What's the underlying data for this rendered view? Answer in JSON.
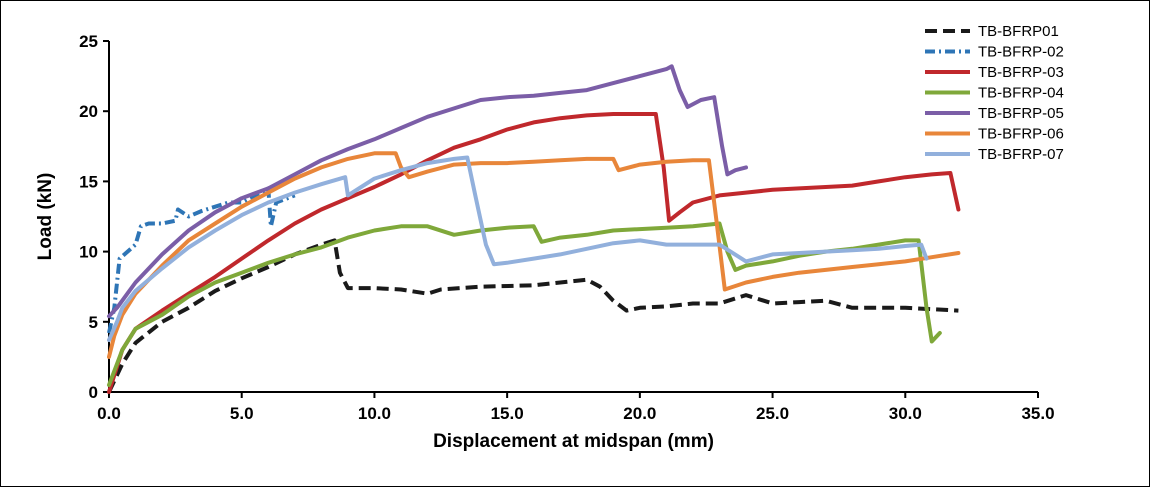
{
  "chart_data": {
    "type": "line",
    "title": "",
    "xlabel": "Displacement at midspan (mm)",
    "ylabel": "Load (kN)",
    "xlim": [
      0,
      35
    ],
    "ylim": [
      0,
      25
    ],
    "x_ticks": [
      0,
      5,
      10,
      15,
      20,
      25,
      30,
      35
    ],
    "x_tick_labels": [
      "0.0",
      "5.0",
      "10.0",
      "15.0",
      "20.0",
      "25.0",
      "30.0",
      "35.0"
    ],
    "y_ticks": [
      0,
      5,
      10,
      15,
      20,
      25
    ],
    "y_tick_labels": [
      "0",
      "5",
      "10",
      "15",
      "20",
      "25"
    ],
    "grid": false,
    "legend_position": "top-right",
    "series": [
      {
        "name": "TB-BFRP01",
        "color": "#1a1a1a",
        "dash": "dashed",
        "points": [
          [
            0,
            0
          ],
          [
            0.5,
            2
          ],
          [
            1,
            3.5
          ],
          [
            2,
            5
          ],
          [
            3,
            6
          ],
          [
            4,
            7.2
          ],
          [
            5,
            8.1
          ],
          [
            6,
            8.9
          ],
          [
            7,
            9.8
          ],
          [
            8,
            10.5
          ],
          [
            8.5,
            10.8
          ],
          [
            8.7,
            8.5
          ],
          [
            9,
            7.4
          ],
          [
            10,
            7.4
          ],
          [
            11,
            7.3
          ],
          [
            12,
            7.0
          ],
          [
            12.5,
            7.3
          ],
          [
            14,
            7.5
          ],
          [
            16,
            7.6
          ],
          [
            18,
            8.0
          ],
          [
            18.5,
            7.5
          ],
          [
            19,
            6.5
          ],
          [
            19.5,
            5.8
          ],
          [
            20,
            6.0
          ],
          [
            21,
            6.1
          ],
          [
            22,
            6.3
          ],
          [
            23,
            6.3
          ],
          [
            24,
            6.9
          ],
          [
            25,
            6.3
          ],
          [
            26,
            6.4
          ],
          [
            27,
            6.5
          ],
          [
            28,
            6.0
          ],
          [
            29,
            6.0
          ],
          [
            30,
            6.0
          ],
          [
            31,
            5.9
          ],
          [
            32,
            5.8
          ]
        ]
      },
      {
        "name": "TB-BFRP-02",
        "color": "#2e75b6",
        "dash": "dashdot",
        "points": [
          [
            0,
            4.2
          ],
          [
            0.2,
            6
          ],
          [
            0.4,
            9.5
          ],
          [
            0.7,
            10
          ],
          [
            1,
            10.5
          ],
          [
            1.2,
            11.8
          ],
          [
            1.5,
            12
          ],
          [
            2,
            12
          ],
          [
            2.5,
            12.2
          ],
          [
            2.6,
            13
          ],
          [
            3,
            12.5
          ],
          [
            3.5,
            12.9
          ],
          [
            4,
            13.2
          ],
          [
            4.5,
            13.5
          ],
          [
            5,
            13.5
          ],
          [
            5.5,
            14
          ],
          [
            6,
            14.5
          ],
          [
            6.1,
            11.8
          ],
          [
            6.3,
            13.5
          ],
          [
            7,
            14
          ]
        ]
      },
      {
        "name": "TB-BFRP-03",
        "color": "#c0282c",
        "dash": "solid",
        "points": [
          [
            0,
            0
          ],
          [
            0.5,
            3
          ],
          [
            1,
            4.5
          ],
          [
            2,
            5.8
          ],
          [
            3,
            7
          ],
          [
            4,
            8.2
          ],
          [
            5,
            9.5
          ],
          [
            6,
            10.8
          ],
          [
            7,
            12
          ],
          [
            8,
            13
          ],
          [
            9,
            13.8
          ],
          [
            10,
            14.6
          ],
          [
            11,
            15.5
          ],
          [
            12,
            16.5
          ],
          [
            13,
            17.4
          ],
          [
            14,
            18.0
          ],
          [
            15,
            18.7
          ],
          [
            16,
            19.2
          ],
          [
            17,
            19.5
          ],
          [
            18,
            19.7
          ],
          [
            19,
            19.8
          ],
          [
            20,
            19.8
          ],
          [
            20.6,
            19.8
          ],
          [
            20.9,
            16
          ],
          [
            21.1,
            12.2
          ],
          [
            21.5,
            12.8
          ],
          [
            22,
            13.5
          ],
          [
            23,
            14
          ],
          [
            24,
            14.2
          ],
          [
            25,
            14.4
          ],
          [
            26,
            14.5
          ],
          [
            27,
            14.6
          ],
          [
            28,
            14.7
          ],
          [
            29,
            15.0
          ],
          [
            30,
            15.3
          ],
          [
            31,
            15.5
          ],
          [
            31.7,
            15.6
          ],
          [
            32,
            13
          ]
        ]
      },
      {
        "name": "TB-BFRP-04",
        "color": "#7fa83a",
        "dash": "solid",
        "points": [
          [
            0,
            0.5
          ],
          [
            0.3,
            2
          ],
          [
            0.5,
            3
          ],
          [
            1,
            4.5
          ],
          [
            2,
            5.5
          ],
          [
            3,
            6.8
          ],
          [
            4,
            7.8
          ],
          [
            5,
            8.5
          ],
          [
            6,
            9.2
          ],
          [
            7,
            9.8
          ],
          [
            8,
            10.3
          ],
          [
            9,
            11
          ],
          [
            10,
            11.5
          ],
          [
            11,
            11.8
          ],
          [
            12,
            11.8
          ],
          [
            13,
            11.2
          ],
          [
            14,
            11.5
          ],
          [
            15,
            11.7
          ],
          [
            16,
            11.8
          ],
          [
            16.3,
            10.7
          ],
          [
            17,
            11
          ],
          [
            18,
            11.2
          ],
          [
            19,
            11.5
          ],
          [
            20,
            11.6
          ],
          [
            21,
            11.7
          ],
          [
            22,
            11.8
          ],
          [
            23,
            12.0
          ],
          [
            23.3,
            10
          ],
          [
            23.6,
            8.7
          ],
          [
            24,
            9
          ],
          [
            25,
            9.3
          ],
          [
            26,
            9.7
          ],
          [
            27,
            10
          ],
          [
            28,
            10.2
          ],
          [
            29,
            10.5
          ],
          [
            30,
            10.8
          ],
          [
            30.5,
            10.8
          ],
          [
            30.8,
            6
          ],
          [
            31,
            3.6
          ],
          [
            31.3,
            4.2
          ]
        ]
      },
      {
        "name": "TB-BFRP-05",
        "color": "#7b5ea7",
        "dash": "solid",
        "points": [
          [
            0,
            5.4
          ],
          [
            0.3,
            6
          ],
          [
            1,
            7.8
          ],
          [
            2,
            9.8
          ],
          [
            3,
            11.5
          ],
          [
            4,
            12.8
          ],
          [
            5,
            13.8
          ],
          [
            6,
            14.5
          ],
          [
            7,
            15.5
          ],
          [
            8,
            16.5
          ],
          [
            9,
            17.3
          ],
          [
            10,
            18
          ],
          [
            11,
            18.8
          ],
          [
            12,
            19.6
          ],
          [
            13,
            20.2
          ],
          [
            14,
            20.8
          ],
          [
            15,
            21.0
          ],
          [
            16,
            21.1
          ],
          [
            17,
            21.3
          ],
          [
            18,
            21.5
          ],
          [
            19,
            22
          ],
          [
            20,
            22.5
          ],
          [
            21,
            23
          ],
          [
            21.2,
            23.2
          ],
          [
            21.5,
            21.5
          ],
          [
            21.8,
            20.3
          ],
          [
            22.3,
            20.8
          ],
          [
            22.8,
            21
          ],
          [
            23.1,
            17.5
          ],
          [
            23.3,
            15.5
          ],
          [
            23.6,
            15.8
          ],
          [
            24,
            16
          ]
        ]
      },
      {
        "name": "TB-BFRP-06",
        "color": "#e8863a",
        "dash": "solid",
        "points": [
          [
            0,
            2.5
          ],
          [
            0.2,
            4
          ],
          [
            0.5,
            5.5
          ],
          [
            1,
            7
          ],
          [
            2,
            9
          ],
          [
            3,
            10.8
          ],
          [
            4,
            12
          ],
          [
            5,
            13.2
          ],
          [
            6,
            14.2
          ],
          [
            7,
            15.2
          ],
          [
            8,
            16
          ],
          [
            9,
            16.6
          ],
          [
            10,
            17
          ],
          [
            10.8,
            17.0
          ],
          [
            11,
            16
          ],
          [
            11.3,
            15.3
          ],
          [
            12,
            15.7
          ],
          [
            13,
            16.2
          ],
          [
            14,
            16.3
          ],
          [
            15,
            16.3
          ],
          [
            16,
            16.4
          ],
          [
            17,
            16.5
          ],
          [
            18,
            16.6
          ],
          [
            19,
            16.6
          ],
          [
            19.2,
            15.8
          ],
          [
            20,
            16.2
          ],
          [
            21,
            16.4
          ],
          [
            22,
            16.5
          ],
          [
            22.6,
            16.5
          ],
          [
            22.9,
            12
          ],
          [
            23.2,
            7.3
          ],
          [
            24,
            7.8
          ],
          [
            25,
            8.2
          ],
          [
            26,
            8.5
          ],
          [
            27,
            8.7
          ],
          [
            28,
            8.9
          ],
          [
            29,
            9.1
          ],
          [
            30,
            9.3
          ],
          [
            31,
            9.6
          ],
          [
            32,
            9.9
          ]
        ]
      },
      {
        "name": "TB-BFRP-07",
        "color": "#92b0dc",
        "dash": "solid",
        "points": [
          [
            0,
            3.7
          ],
          [
            0.3,
            5
          ],
          [
            0.5,
            6
          ],
          [
            1,
            7.2
          ],
          [
            2,
            8.8
          ],
          [
            3,
            10.3
          ],
          [
            4,
            11.5
          ],
          [
            5,
            12.6
          ],
          [
            6,
            13.5
          ],
          [
            7,
            14.2
          ],
          [
            8,
            14.8
          ],
          [
            8.9,
            15.3
          ],
          [
            9,
            14.0
          ],
          [
            9.5,
            14.6
          ],
          [
            10,
            15.2
          ],
          [
            11,
            15.8
          ],
          [
            12,
            16.3
          ],
          [
            13,
            16.6
          ],
          [
            13.5,
            16.7
          ],
          [
            13.8,
            14
          ],
          [
            14.2,
            10.5
          ],
          [
            14.5,
            9.1
          ],
          [
            15,
            9.2
          ],
          [
            16,
            9.5
          ],
          [
            17,
            9.8
          ],
          [
            18,
            10.2
          ],
          [
            19,
            10.6
          ],
          [
            20,
            10.8
          ],
          [
            21,
            10.5
          ],
          [
            22,
            10.5
          ],
          [
            23,
            10.5
          ],
          [
            24,
            9.3
          ],
          [
            25,
            9.8
          ],
          [
            26,
            9.9
          ],
          [
            27,
            10
          ],
          [
            28,
            10.1
          ],
          [
            29,
            10.2
          ],
          [
            30,
            10.4
          ],
          [
            30.6,
            10.5
          ],
          [
            30.8,
            9.5
          ]
        ]
      }
    ]
  }
}
